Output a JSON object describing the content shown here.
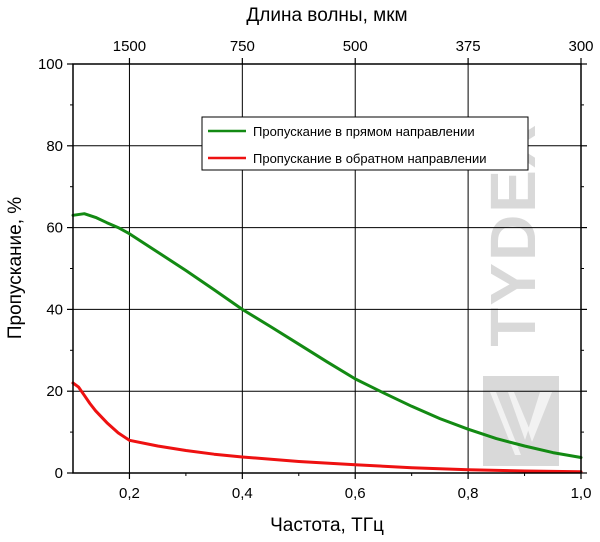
{
  "chart_data": {
    "type": "line",
    "xlabel": "Частота, ТГц",
    "ylabel": "Пропускание, %",
    "top_axis_label": "Длина волны, мкм",
    "xlim": [
      0.1,
      1.0
    ],
    "ylim": [
      0,
      100
    ],
    "x_ticks": [
      0.2,
      0.4,
      0.6,
      0.8,
      1.0
    ],
    "x_tick_labels": [
      "0,2",
      "0,4",
      "0,6",
      "0,8",
      "1,0"
    ],
    "y_ticks": [
      0,
      20,
      40,
      60,
      80,
      100
    ],
    "y_tick_labels": [
      "0",
      "20",
      "40",
      "60",
      "80",
      "100"
    ],
    "top_ticks": [
      1500,
      750,
      500,
      375,
      300
    ],
    "top_tick_labels": [
      "1500",
      "750",
      "500",
      "375",
      "300"
    ],
    "grid": true,
    "legend_position": "top-right",
    "watermark": "TYDEX",
    "series": [
      {
        "name": "Пропускание в прямом направлении",
        "color": "#138a13",
        "x": [
          0.1,
          0.12,
          0.14,
          0.16,
          0.18,
          0.2,
          0.25,
          0.3,
          0.35,
          0.4,
          0.45,
          0.5,
          0.55,
          0.6,
          0.65,
          0.7,
          0.75,
          0.8,
          0.85,
          0.9,
          0.95,
          1.0
        ],
        "y": [
          63.0,
          63.4,
          62.5,
          61.2,
          60.0,
          58.5,
          54.0,
          49.5,
          44.8,
          40.0,
          35.8,
          31.5,
          27.2,
          23.0,
          19.6,
          16.3,
          13.3,
          10.7,
          8.4,
          6.6,
          5.0,
          3.8
        ]
      },
      {
        "name": "Пропускание в обратном направлении",
        "color": "#ee1111",
        "x": [
          0.1,
          0.11,
          0.12,
          0.13,
          0.14,
          0.16,
          0.18,
          0.2,
          0.25,
          0.3,
          0.35,
          0.4,
          0.5,
          0.6,
          0.7,
          0.8,
          0.9,
          1.0
        ],
        "y": [
          22.0,
          21.0,
          19.0,
          17.0,
          15.2,
          12.3,
          9.8,
          8.0,
          6.6,
          5.5,
          4.6,
          3.9,
          2.8,
          2.0,
          1.3,
          0.8,
          0.5,
          0.3
        ]
      }
    ]
  }
}
